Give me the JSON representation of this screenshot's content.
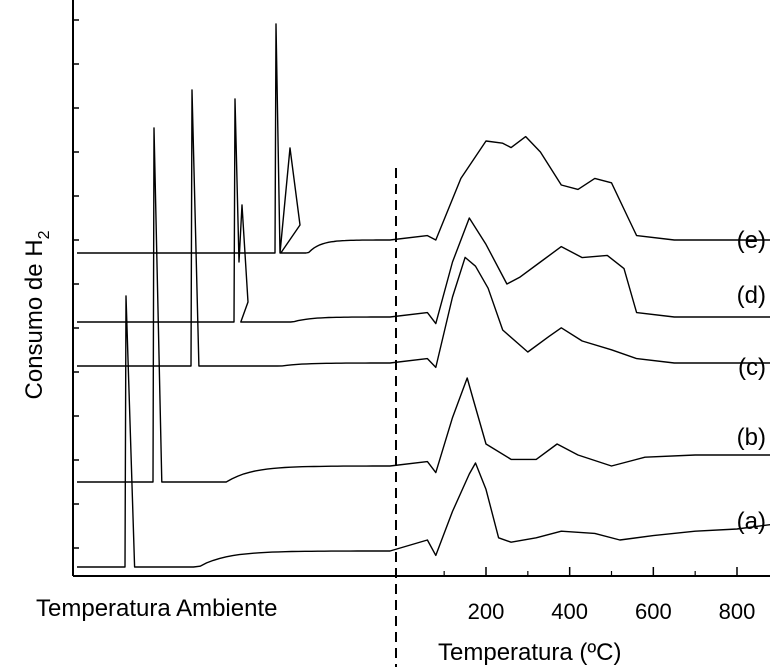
{
  "chart_data": {
    "type": "line",
    "title": "",
    "xlabel": "Temperatura (ºC)",
    "xlabel_left": "Temperatura Ambiente",
    "ylabel_main": "Consumo de H",
    "ylabel_sub": "2",
    "xlim": [
      60,
      880
    ],
    "xticks": [
      200,
      400,
      600,
      800
    ],
    "xtick_labels": [
      "200",
      "400",
      "600",
      "800"
    ],
    "separator": "dashed vertical line between room-temperature segment and temperature-programmed segment",
    "series": [
      {
        "name": "(a)",
        "label": "(a)",
        "offset": 0,
        "ambient_peak": 1.0,
        "tpr": [
          [
            60,
            0.05
          ],
          [
            80,
            -0.02
          ],
          [
            120,
            0.18
          ],
          [
            160,
            0.35
          ],
          [
            175,
            0.4
          ],
          [
            200,
            0.28
          ],
          [
            230,
            0.06
          ],
          [
            260,
            0.04
          ],
          [
            320,
            0.06
          ],
          [
            380,
            0.09
          ],
          [
            460,
            0.08
          ],
          [
            520,
            0.05
          ],
          [
            600,
            0.07
          ],
          [
            700,
            0.09
          ],
          [
            800,
            0.1
          ],
          [
            880,
            0.12
          ]
        ]
      },
      {
        "name": "(b)",
        "label": "(b)",
        "offset": 1,
        "ambient_peak": 1.3,
        "tpr": [
          [
            60,
            0.02
          ],
          [
            80,
            -0.03
          ],
          [
            120,
            0.22
          ],
          [
            155,
            0.4
          ],
          [
            170,
            0.3
          ],
          [
            200,
            0.1
          ],
          [
            260,
            0.03
          ],
          [
            320,
            0.03
          ],
          [
            370,
            0.1
          ],
          [
            420,
            0.05
          ],
          [
            500,
            0.0
          ],
          [
            580,
            0.04
          ],
          [
            700,
            0.05
          ],
          [
            880,
            0.05
          ]
        ]
      },
      {
        "name": "(c)",
        "label": "(c)",
        "offset": 2,
        "ambient_peak": 1.0,
        "tpr": [
          [
            60,
            0.02
          ],
          [
            80,
            -0.02
          ],
          [
            120,
            0.3
          ],
          [
            150,
            0.48
          ],
          [
            175,
            0.44
          ],
          [
            205,
            0.34
          ],
          [
            240,
            0.15
          ],
          [
            300,
            0.05
          ],
          [
            350,
            0.12
          ],
          [
            380,
            0.16
          ],
          [
            430,
            0.1
          ],
          [
            500,
            0.06
          ],
          [
            560,
            0.02
          ],
          [
            650,
            0.0
          ],
          [
            880,
            0.0
          ]
        ]
      },
      {
        "name": "(d)",
        "label": "(d)",
        "offset": 3,
        "ambient_peak": 0.85,
        "tpr": [
          [
            60,
            0.02
          ],
          [
            80,
            -0.03
          ],
          [
            120,
            0.25
          ],
          [
            160,
            0.45
          ],
          [
            200,
            0.33
          ],
          [
            250,
            0.15
          ],
          [
            280,
            0.18
          ],
          [
            330,
            0.25
          ],
          [
            380,
            0.32
          ],
          [
            430,
            0.27
          ],
          [
            490,
            0.28
          ],
          [
            530,
            0.22
          ],
          [
            560,
            0.02
          ],
          [
            650,
            0.0
          ],
          [
            880,
            0.0
          ]
        ]
      },
      {
        "name": "(e)",
        "label": "(e)",
        "offset": 4,
        "ambient_peak": 0.82,
        "tpr": [
          [
            60,
            0.02
          ],
          [
            80,
            0.0
          ],
          [
            140,
            0.28
          ],
          [
            200,
            0.45
          ],
          [
            240,
            0.44
          ],
          [
            260,
            0.42
          ],
          [
            295,
            0.47
          ],
          [
            330,
            0.4
          ],
          [
            380,
            0.25
          ],
          [
            420,
            0.23
          ],
          [
            460,
            0.28
          ],
          [
            500,
            0.26
          ],
          [
            540,
            0.1
          ],
          [
            560,
            0.02
          ],
          [
            650,
            0.0
          ],
          [
            880,
            0.0
          ]
        ]
      }
    ],
    "grid": false,
    "legend": "none"
  }
}
